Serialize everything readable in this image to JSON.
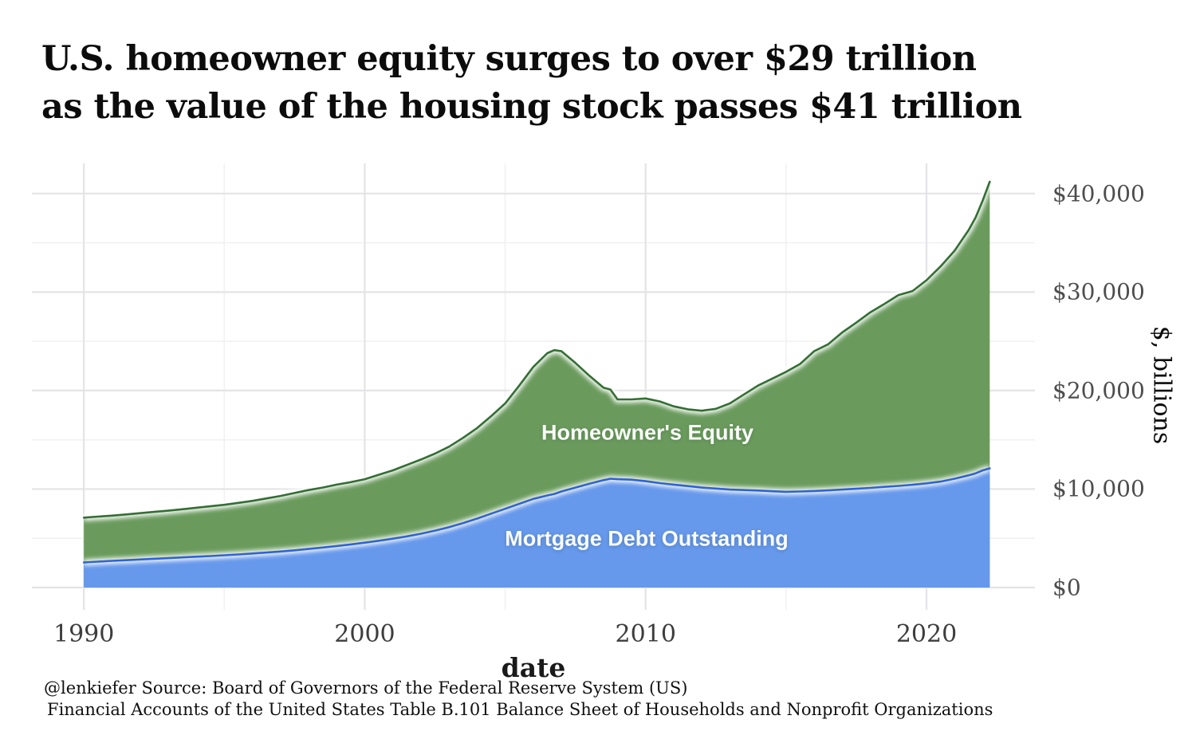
{
  "title": {
    "line1": "U.S. homeowner equity surges to over $29 trillion",
    "line2": "as the value of the housing stock passes $41 trillion"
  },
  "caption": {
    "line1": "@lenkiefer Source: Board of Governors of the Federal Reserve System (US)",
    "line2": "Financial Accounts of the United States Table B.101 Balance Sheet of Households and Nonprofit Organizations"
  },
  "chart_data": {
    "type": "area",
    "stacked": true,
    "xlabel": "date",
    "ylabel": "$, billions",
    "x_domain": [
      1988.15,
      2023.86
    ],
    "y_domain": [
      -2266,
      43060
    ],
    "x_tick_values": [
      1990,
      2000,
      2010,
      2020
    ],
    "x_tick_labels": [
      "1990",
      "2000",
      "2010",
      "2020"
    ],
    "x_minor_tick_values": [
      1995,
      2005,
      2015
    ],
    "y_tick_values": [
      0,
      10000,
      20000,
      30000,
      40000
    ],
    "y_tick_labels": [
      "$0",
      "$10,000",
      "$20,000",
      "$30,000",
      "$40,000"
    ],
    "y_minor_tick_values": [
      5000,
      15000,
      25000,
      35000
    ],
    "grid": {
      "major_color": "#e4e4e6",
      "minor_color": "#f1f1f3",
      "background": "#ffffff"
    },
    "x": [
      1990,
      1990.5,
      1991,
      1991.5,
      1992,
      1992.5,
      1993,
      1993.5,
      1994,
      1994.5,
      1995,
      1995.5,
      1996,
      1996.5,
      1997,
      1997.5,
      1998,
      1998.5,
      1999,
      1999.5,
      2000,
      2000.5,
      2001,
      2001.5,
      2002,
      2002.5,
      2003,
      2003.5,
      2004,
      2004.5,
      2005,
      2005.5,
      2006,
      2006.5,
      2006.75,
      2007,
      2007.5,
      2008,
      2008.5,
      2008.75,
      2009,
      2009.5,
      2010,
      2010.5,
      2011,
      2011.5,
      2012,
      2012.5,
      2013,
      2013.5,
      2014,
      2014.5,
      2015,
      2015.5,
      2016,
      2016.5,
      2017,
      2017.5,
      2018,
      2018.5,
      2019,
      2019.5,
      2020,
      2020.5,
      2021,
      2021.5,
      2021.75,
      2022,
      2022.25
    ],
    "series": [
      {
        "name": "Mortgage Debt Outstanding",
        "fill_color": "#6698ec",
        "line_color": "#2f62d4",
        "glow_color": "#ffffff",
        "values": [
          2550,
          2630,
          2710,
          2780,
          2850,
          2920,
          2990,
          3060,
          3130,
          3200,
          3280,
          3360,
          3460,
          3550,
          3660,
          3780,
          3920,
          4060,
          4220,
          4380,
          4560,
          4750,
          4960,
          5200,
          5460,
          5780,
          6130,
          6550,
          7000,
          7500,
          8000,
          8500,
          9000,
          9350,
          9500,
          9750,
          10150,
          10550,
          10900,
          11050,
          11000,
          10950,
          10800,
          10600,
          10450,
          10300,
          10150,
          10050,
          9950,
          9900,
          9850,
          9780,
          9720,
          9750,
          9800,
          9870,
          9950,
          10030,
          10120,
          10220,
          10320,
          10430,
          10580,
          10760,
          11050,
          11400,
          11600,
          11900,
          12100
        ]
      },
      {
        "name": "Homeowner's Equity",
        "fill_color": "#6a9b5d",
        "line_color": "#346e34",
        "glow_color": "#ffffff",
        "values": [
          4550,
          4570,
          4590,
          4640,
          4700,
          4760,
          4810,
          4890,
          4970,
          5050,
          5120,
          5240,
          5340,
          5500,
          5640,
          5820,
          5980,
          6090,
          6230,
          6320,
          6440,
          6700,
          6940,
          7250,
          7540,
          7820,
          8170,
          8650,
          9200,
          9900,
          10700,
          12000,
          13400,
          14450,
          14600,
          14250,
          12650,
          10950,
          9400,
          9050,
          8100,
          8150,
          8400,
          8300,
          7950,
          7800,
          7800,
          8100,
          8750,
          9700,
          10650,
          11420,
          12180,
          12950,
          14200,
          14830,
          15950,
          16870,
          17830,
          18580,
          19380,
          19670,
          20620,
          21840,
          23150,
          24900,
          26000,
          27400,
          29100
        ]
      }
    ]
  }
}
